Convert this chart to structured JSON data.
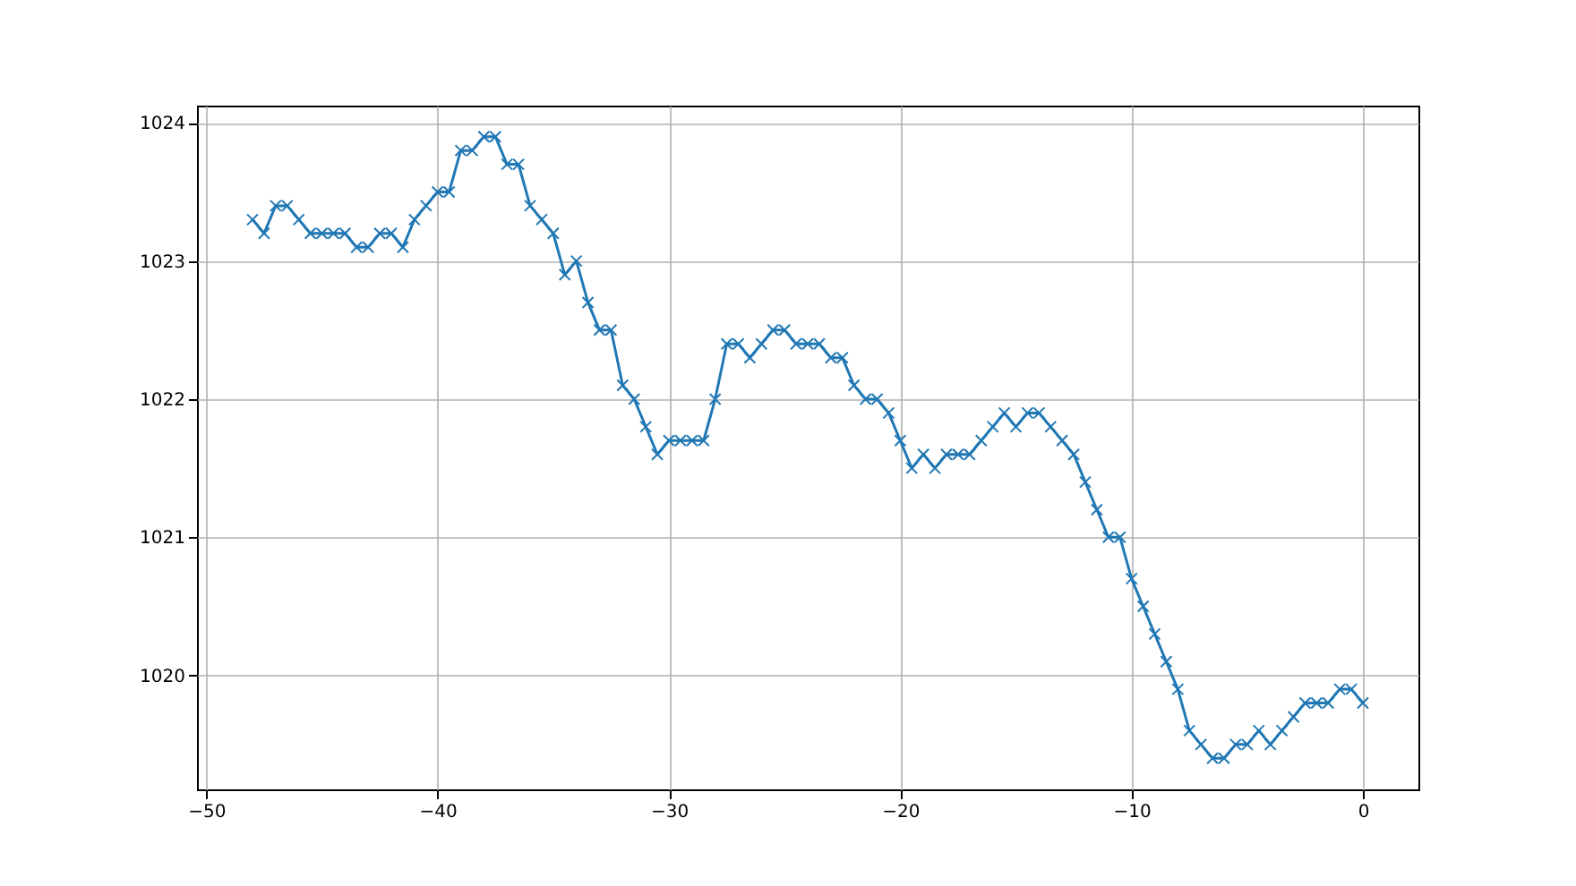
{
  "chart_data": {
    "type": "line",
    "x": [
      -48,
      -47.5,
      -47,
      -46.5,
      -46,
      -45.5,
      -45,
      -44.5,
      -44,
      -43.5,
      -43,
      -42.5,
      -42,
      -41.5,
      -41,
      -40.5,
      -40,
      -39.5,
      -39,
      -38.5,
      -38,
      -37.5,
      -37,
      -36.5,
      -36,
      -35.5,
      -35,
      -34.5,
      -34,
      -33.5,
      -33,
      -32.5,
      -32,
      -31.5,
      -31,
      -30.5,
      -30,
      -29.5,
      -29,
      -28.5,
      -28,
      -27.5,
      -27,
      -26.5,
      -26,
      -25.5,
      -25,
      -24.5,
      -24,
      -23.5,
      -23,
      -22.5,
      -22,
      -21.5,
      -21,
      -20.5,
      -20,
      -19.5,
      -19,
      -18.5,
      -18,
      -17.5,
      -17,
      -16.5,
      -16,
      -15.5,
      -15,
      -14.5,
      -14,
      -13.5,
      -13,
      -12.5,
      -12,
      -11.5,
      -11,
      -10.5,
      -10,
      -9.5,
      -9,
      -8.5,
      -8,
      -7.5,
      -7,
      -6.5,
      -6,
      -5.5,
      -5,
      -4.5,
      -4,
      -3.5,
      -3,
      -2.5,
      -2,
      -1.5,
      -1,
      -0.5,
      0
    ],
    "series": [
      {
        "color": "#1f77b4",
        "values": [
          1023.3,
          1023.2,
          1023.4,
          1023.4,
          1023.3,
          1023.2,
          1023.2,
          1023.2,
          1023.2,
          1023.1,
          1023.1,
          1023.2,
          1023.2,
          1023.1,
          1023.3,
          1023.4,
          1023.5,
          1023.5,
          1023.8,
          1023.8,
          1023.9,
          1023.9,
          1023.7,
          1023.7,
          1023.4,
          1023.3,
          1023.2,
          1022.9,
          1023.0,
          1022.7,
          1022.5,
          1022.5,
          1022.1,
          1022.0,
          1021.8,
          1021.6,
          1021.7,
          1021.7,
          1021.7,
          1021.7,
          1022.0,
          1022.4,
          1022.4,
          1022.3,
          1022.4,
          1022.5,
          1022.5,
          1022.4,
          1022.4,
          1022.4,
          1022.3,
          1022.3,
          1022.1,
          1022.0,
          1022.0,
          1021.9,
          1021.7,
          1021.5,
          1021.6,
          1021.5,
          1021.6,
          1021.6,
          1021.6,
          1021.7,
          1021.8,
          1021.9,
          1021.8,
          1021.9,
          1021.9,
          1021.8,
          1021.7,
          1021.6,
          1021.4,
          1021.2,
          1021.0,
          1021.0,
          1020.7,
          1020.5,
          1020.3,
          1020.1,
          1019.9,
          1019.6,
          1019.5,
          1019.4,
          1019.4,
          1019.5,
          1019.5,
          1019.6,
          1019.5,
          1019.6,
          1019.7,
          1019.8,
          1019.8,
          1019.8,
          1019.9,
          1019.9,
          1019.8
        ]
      }
    ],
    "xlim": [
      -50.4,
      2.4
    ],
    "xticks": [
      -50,
      -40,
      -30,
      -20,
      -10,
      0
    ],
    "ylim": [
      1019.175,
      1024.125
    ],
    "yticks": [
      1020,
      1021,
      1022,
      1023,
      1024
    ],
    "grid": true,
    "marker": "cross",
    "line_style": "solid"
  }
}
